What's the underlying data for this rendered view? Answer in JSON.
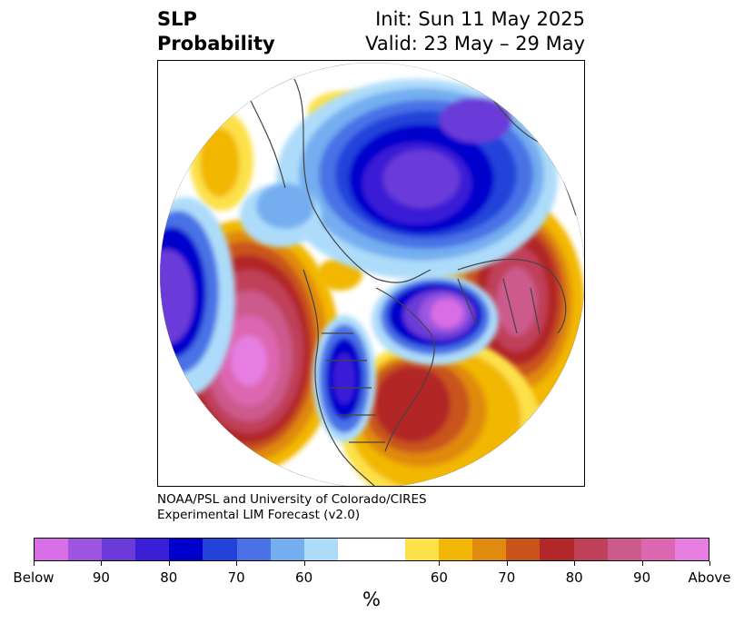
{
  "header": {
    "variable_line1": "SLP",
    "variable_line2": "Probability",
    "init_line": "Init: Sun 11 May 2025",
    "valid_line": "Valid: 23 May – 29 May"
  },
  "credit": {
    "line1": "NOAA/PSL and University of Colorado/CIRES",
    "line2": "Experimental LIM Forecast (v2.0)"
  },
  "map": {
    "projection": "north-polar-stereographic",
    "field": "sea level pressure tercile probability"
  },
  "colorbar": {
    "unit_label": "%",
    "colors": [
      "#d86ee6",
      "#9b55e0",
      "#6b3ad8",
      "#3a1fd6",
      "#0000cc",
      "#2342da",
      "#4a72e6",
      "#75aef0",
      "#addcfa",
      "#ffffff",
      "#ffffff",
      "#fde14a",
      "#f2b705",
      "#e08a0f",
      "#c9541a",
      "#b22828",
      "#c0405a",
      "#cc5a8c",
      "#dd66b0",
      "#e57ee0"
    ],
    "ticks": [
      "Below",
      "90",
      "80",
      "70",
      "60",
      "60",
      "70",
      "80",
      "90",
      "Above"
    ]
  }
}
